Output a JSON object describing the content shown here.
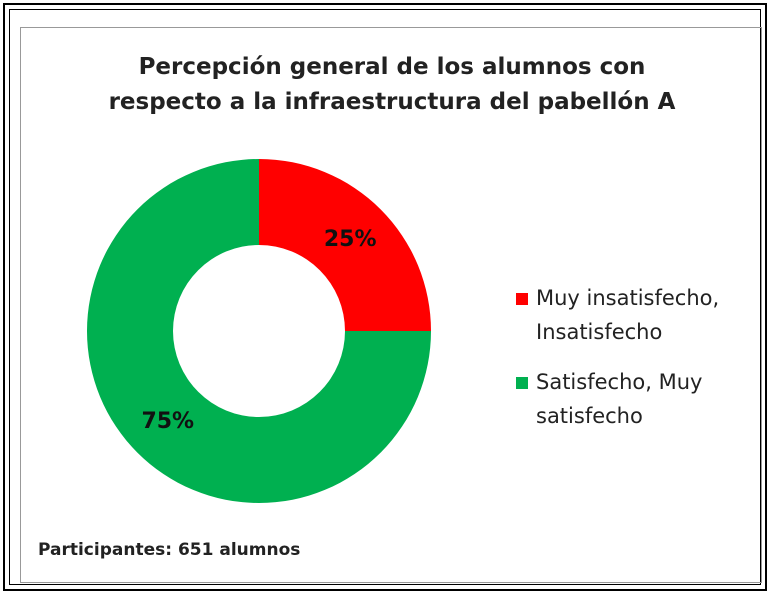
{
  "chart_data": {
    "type": "pie",
    "title": "Percepción general  de los alumnos con respecto a la infraestructura del pabellón A",
    "categories": [
      "Muy insatisfecho, Insatisfecho",
      "Satisfecho, Muy satisfecho"
    ],
    "values": [
      25,
      75
    ],
    "value_labels": [
      "25%",
      "75%"
    ],
    "colors": [
      "#ff0000",
      "#00b050"
    ],
    "annotation": "Participantes:  651 alumnos",
    "legend": "right"
  }
}
